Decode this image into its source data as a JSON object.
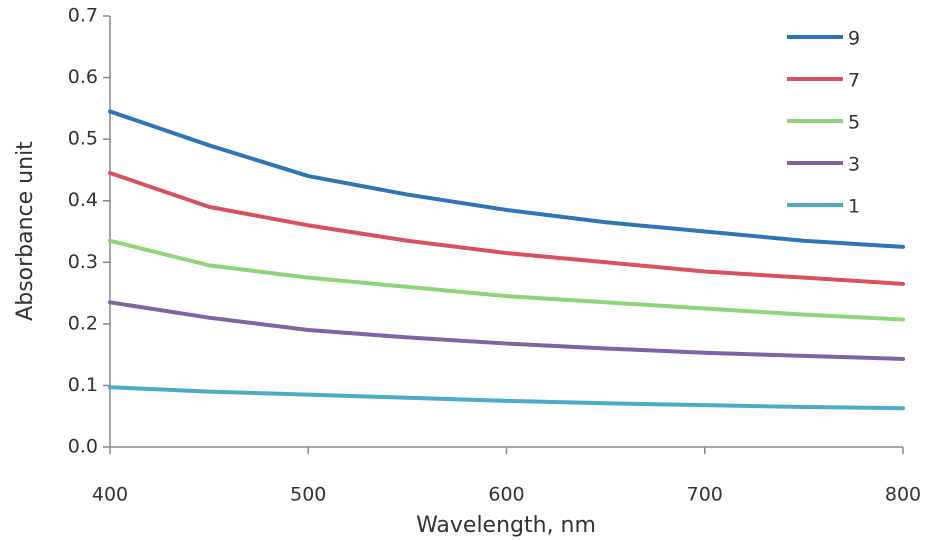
{
  "chart_data": {
    "type": "line",
    "x_label": "Wavelength, nm",
    "y_label": "Absorbance unit",
    "x": [
      400,
      450,
      500,
      550,
      600,
      650,
      700,
      750,
      800
    ],
    "series": [
      {
        "name": "9",
        "color": "#2e75b6",
        "values": [
          0.545,
          0.49,
          0.44,
          0.41,
          0.385,
          0.365,
          0.35,
          0.335,
          0.325
        ]
      },
      {
        "name": "7",
        "color": "#d9505f",
        "values": [
          0.445,
          0.39,
          0.36,
          0.335,
          0.315,
          0.3,
          0.285,
          0.275,
          0.265
        ]
      },
      {
        "name": "5",
        "color": "#8fd47a",
        "values": [
          0.335,
          0.295,
          0.275,
          0.26,
          0.245,
          0.235,
          0.225,
          0.215,
          0.207
        ]
      },
      {
        "name": "3",
        "color": "#8064a2",
        "values": [
          0.235,
          0.21,
          0.19,
          0.178,
          0.168,
          0.16,
          0.153,
          0.148,
          0.143
        ]
      },
      {
        "name": "1",
        "color": "#4bacc6",
        "values": [
          0.097,
          0.09,
          0.085,
          0.08,
          0.075,
          0.071,
          0.068,
          0.065,
          0.063
        ]
      }
    ],
    "xlim": [
      400,
      800
    ],
    "xticks": [
      400,
      500,
      600,
      700,
      800
    ],
    "ylim": [
      0,
      0.7
    ],
    "yticks": [
      {
        "value": 0,
        "label": "0.0"
      },
      0.1,
      0.2,
      0.3,
      0.4,
      0.5,
      0.6,
      0.7
    ],
    "grid": false,
    "legend": "upper right"
  }
}
